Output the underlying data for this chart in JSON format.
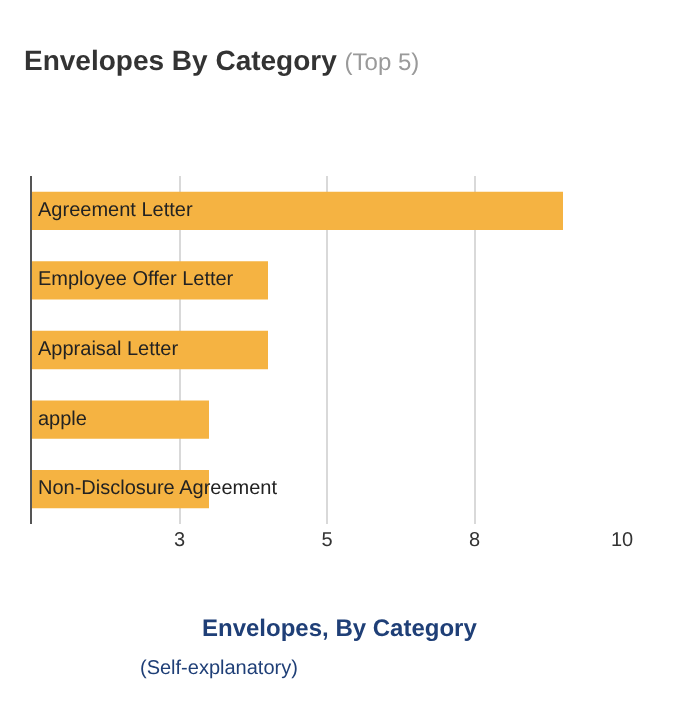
{
  "chart_data": {
    "type": "bar",
    "orientation": "horizontal",
    "title": "Envelopes By Category",
    "subtitle": "(Top 5)",
    "categories": [
      "Agreement Letter",
      "Employee Offer Letter",
      "Appraisal Letter",
      "apple",
      "Non-Disclosure Agreement"
    ],
    "values": [
      9,
      4,
      4,
      3,
      3
    ],
    "color": "#f5b342",
    "xlim": [
      0,
      10
    ],
    "xticks": [
      {
        "value": 2.5,
        "label": "3"
      },
      {
        "value": 5,
        "label": "5"
      },
      {
        "value": 7.5,
        "label": "8"
      },
      {
        "value": 10,
        "label": "10"
      }
    ],
    "grid": "x",
    "tick_labels": "x",
    "legend": false,
    "annotations": [
      "Envelopes, By Category",
      "(Self-explanatory)"
    ]
  }
}
